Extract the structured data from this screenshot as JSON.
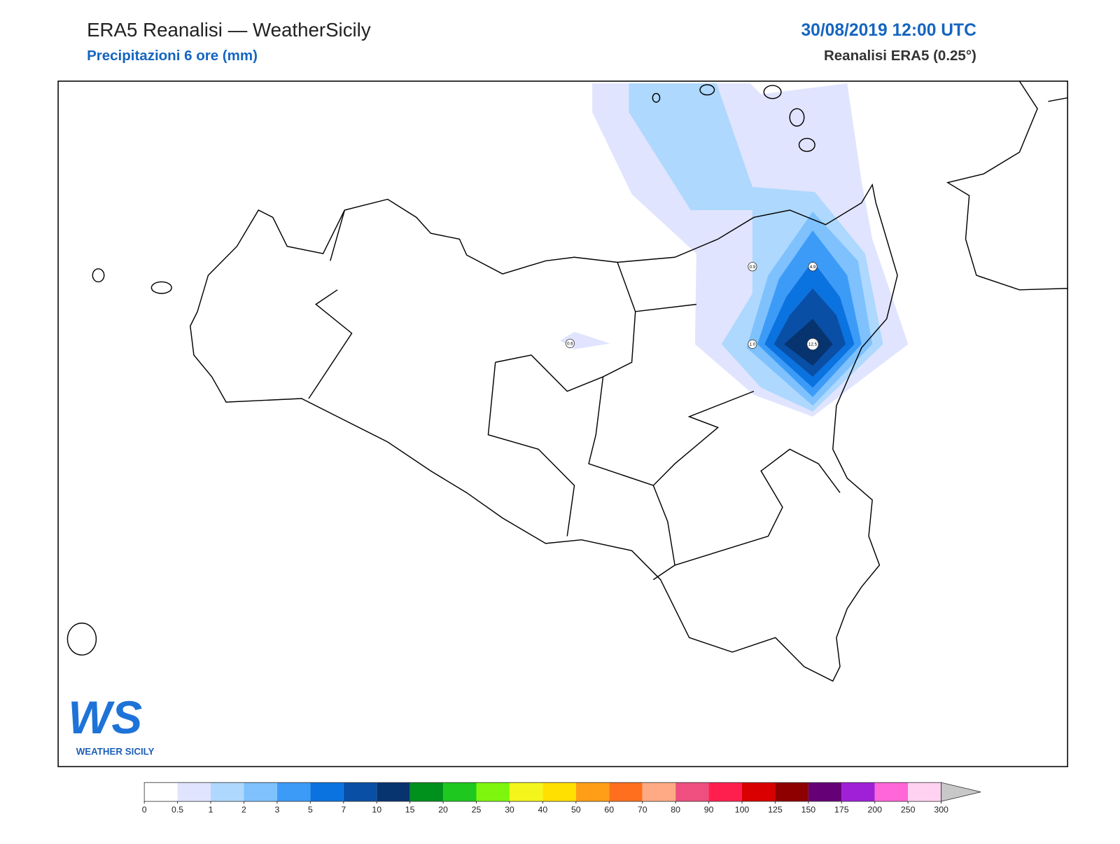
{
  "header": {
    "title": "ERA5 Reanalisi — WeatherSicily",
    "subtitle": "Precipitazioni 6 ore (mm)",
    "datetime": "30/08/2019 12:00 UTC",
    "model": "Reanalisi ERA5 (0.25°)"
  },
  "point_labels": [
    {
      "label": "0.6",
      "x": 794,
      "y": 474
    },
    {
      "label": "0.9",
      "x": 1048,
      "y": 368
    },
    {
      "label": "4.9",
      "x": 1132,
      "y": 368
    },
    {
      "label": "1.0",
      "x": 1048,
      "y": 475
    },
    {
      "label": "12.5",
      "x": 1132,
      "y": 475
    }
  ],
  "colorbar": {
    "levels": [
      0,
      0.5,
      1,
      2,
      3,
      5,
      7,
      10,
      15,
      20,
      25,
      30,
      40,
      50,
      60,
      70,
      80,
      90,
      100,
      125,
      150,
      175,
      200,
      250,
      300
    ],
    "colors": [
      "#ffffff",
      "#e1e4fe",
      "#aed8fe",
      "#7ec1fd",
      "#3d9bf8",
      "#0b73e0",
      "#0a4fa6",
      "#07336f",
      "#00901c",
      "#1ec81e",
      "#7df50d",
      "#f4f51a",
      "#ffe000",
      "#ff9e16",
      "#ff6f1e",
      "#ffaa84",
      "#ee4f7e",
      "#ff1f4f",
      "#d80000",
      "#8e0000",
      "#660077",
      "#a020d8",
      "#ff66d8",
      "#ffd2f2"
    ],
    "extend_color": "#c8c8c8"
  },
  "logo": {
    "mark": "WS",
    "text": "WEATHER SICILY"
  }
}
